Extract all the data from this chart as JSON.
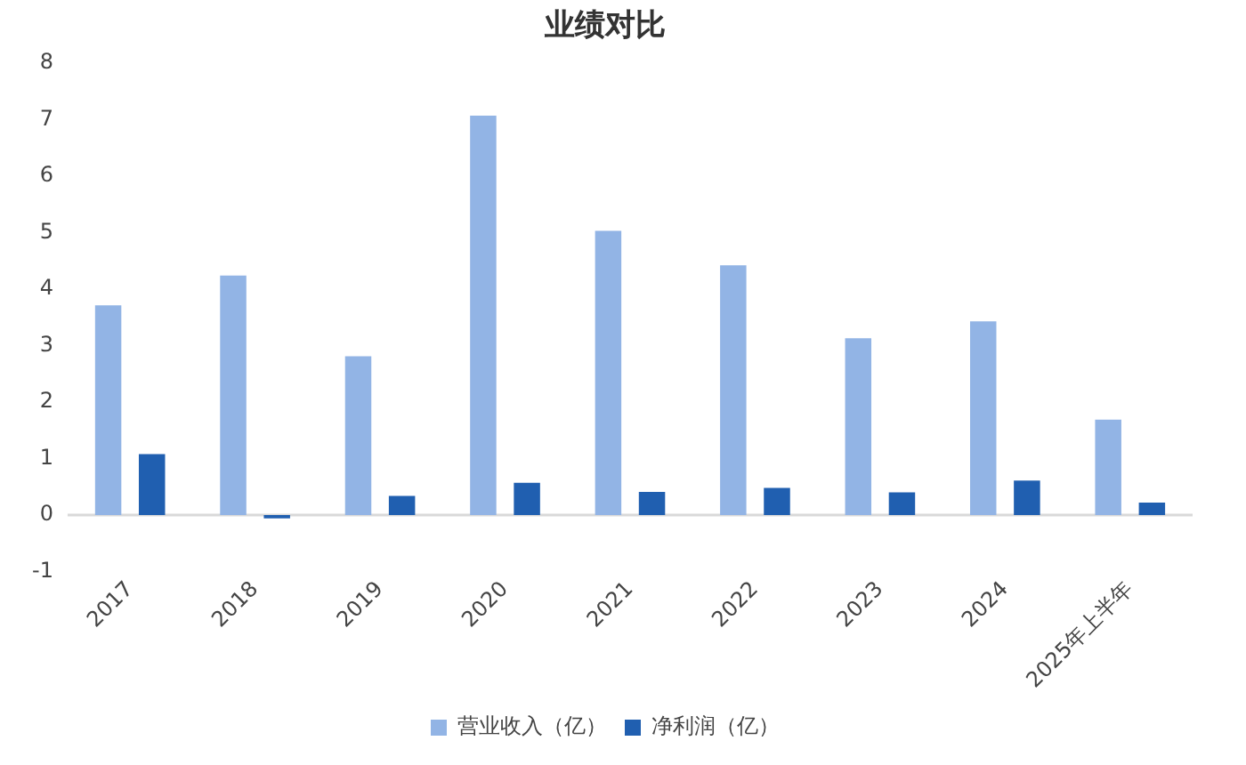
{
  "chart_data": {
    "type": "bar",
    "title": "业绩对比",
    "categories": [
      "2017",
      "2018",
      "2019",
      "2020",
      "2021",
      "2022",
      "2023",
      "2024",
      "2025年上半年"
    ],
    "series": [
      {
        "name": "营业收入（亿）",
        "color": "#92b4e5",
        "values": [
          3.71,
          4.24,
          2.81,
          7.07,
          5.03,
          4.42,
          3.13,
          3.43,
          1.69
        ]
      },
      {
        "name": "净利润（亿）",
        "color": "#205fb0",
        "values": [
          1.08,
          -0.06,
          0.34,
          0.57,
          0.41,
          0.48,
          0.4,
          0.61,
          0.22
        ]
      }
    ],
    "ylim": [
      -1,
      8
    ],
    "yticks": [
      -1,
      0,
      1,
      2,
      3,
      4,
      5,
      6,
      7,
      8
    ],
    "grid": false,
    "legend": "bottom",
    "ref_lines": [
      {
        "axis": "y",
        "value": 0,
        "color": "#d9d9d9"
      }
    ]
  }
}
